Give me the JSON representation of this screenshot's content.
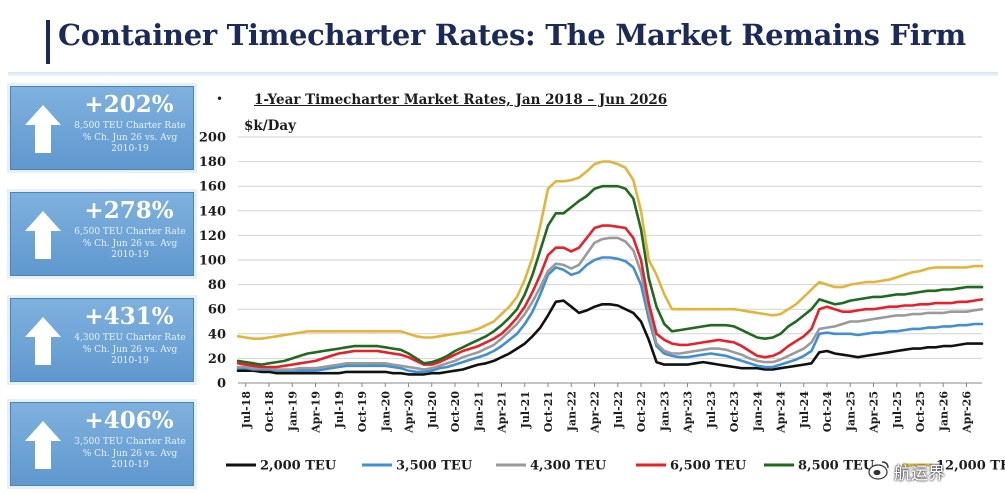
{
  "page": {
    "title": "Container Timecharter Rates: The Market Remains Firm"
  },
  "stats": [
    {
      "pct": "+202%",
      "desc": "8,500 TEU Charter Rate % Ch. Jun 26 vs. Avg 2010-19"
    },
    {
      "pct": "+278%",
      "desc": "6,500 TEU Charter Rate % Ch. Jun 26 vs. Avg 2010-19"
    },
    {
      "pct": "+431%",
      "desc": "4,300 TEU Charter Rate % Ch. Jun 26 vs. Avg 2010-19"
    },
    {
      "pct": "+406%",
      "desc": "3,500 TEU Charter Rate % Ch. Jun 26 vs. Avg 2010-19"
    }
  ],
  "colors": {
    "title": "#1c2a5a",
    "panel": "#6fa6d8",
    "grid": "#d2d2d2"
  },
  "watermark": {
    "text": "航运界",
    "icon": "weibo-logo-icon"
  },
  "chart_data": {
    "type": "line",
    "title": "1-Year Timecharter Market Rates, Jan 2018 – Jun 2026",
    "ylabel": "$k/Day",
    "xlabel": "",
    "ylim": [
      0,
      200
    ],
    "yticks": [
      0,
      20,
      40,
      60,
      80,
      100,
      120,
      140,
      160,
      180,
      200
    ],
    "grid": true,
    "legend_position": "bottom",
    "x_tick_labels": [
      "Jul-18",
      "Oct-18",
      "Jan-19",
      "Apr-19",
      "Jul-19",
      "Oct-19",
      "Jan-20",
      "Apr-20",
      "Jul-20",
      "Oct-20",
      "Jan-21",
      "Apr-21",
      "Jul-21",
      "Oct-21",
      "Jan-22",
      "Apr-22",
      "Jul-22",
      "Oct-22",
      "Jan-23",
      "Apr-23",
      "Jul-23",
      "Oct-23",
      "Jan-24",
      "Apr-24",
      "Jul-24",
      "Oct-24",
      "Jan-25",
      "Apr-25",
      "Jul-25",
      "Oct-25",
      "Jan-26",
      "Apr-26"
    ],
    "x_dates": [
      "2018-06",
      "2018-07",
      "2018-08",
      "2018-09",
      "2018-10",
      "2018-11",
      "2018-12",
      "2019-01",
      "2019-02",
      "2019-03",
      "2019-04",
      "2019-05",
      "2019-06",
      "2019-07",
      "2019-08",
      "2019-09",
      "2019-10",
      "2019-11",
      "2019-12",
      "2020-01",
      "2020-02",
      "2020-03",
      "2020-04",
      "2020-05",
      "2020-06",
      "2020-07",
      "2020-08",
      "2020-09",
      "2020-10",
      "2020-11",
      "2020-12",
      "2021-01",
      "2021-02",
      "2021-03",
      "2021-04",
      "2021-05",
      "2021-06",
      "2021-07",
      "2021-08",
      "2021-09",
      "2021-10",
      "2021-11",
      "2021-12",
      "2022-01",
      "2022-02",
      "2022-03",
      "2022-04",
      "2022-05",
      "2022-06",
      "2022-07",
      "2022-08",
      "2022-09",
      "2022-10",
      "2022-11",
      "2022-12",
      "2023-01",
      "2023-02",
      "2023-03",
      "2023-04",
      "2023-05",
      "2023-06",
      "2023-07",
      "2023-08",
      "2023-09",
      "2023-10",
      "2023-11",
      "2023-12",
      "2024-01",
      "2024-02",
      "2024-03",
      "2024-04",
      "2024-05",
      "2024-06",
      "2024-07",
      "2024-08",
      "2024-09",
      "2024-10",
      "2024-11",
      "2024-12",
      "2025-01",
      "2025-02",
      "2025-03",
      "2025-04",
      "2025-05",
      "2025-06",
      "2025-07",
      "2025-08",
      "2025-09",
      "2025-10",
      "2025-11",
      "2025-12",
      "2026-01",
      "2026-02",
      "2026-03",
      "2026-04",
      "2026-05",
      "2026-06"
    ],
    "series": [
      {
        "name": "2,000 TEU",
        "color": "#111111",
        "values": [
          10,
          10,
          10,
          9,
          9,
          8,
          8,
          8,
          8,
          8,
          8,
          8,
          8,
          8,
          9,
          9,
          9,
          9,
          9,
          9,
          8,
          8,
          7,
          7,
          7,
          8,
          8,
          9,
          10,
          11,
          13,
          15,
          16,
          18,
          21,
          24,
          28,
          32,
          38,
          45,
          55,
          66,
          67,
          62,
          57,
          59,
          62,
          64,
          64,
          63,
          60,
          57,
          50,
          35,
          17,
          15,
          15,
          15,
          15,
          16,
          17,
          16,
          15,
          14,
          13,
          12,
          12,
          12,
          11,
          11,
          12,
          13,
          14,
          15,
          16,
          25,
          26,
          24,
          23,
          22,
          21,
          22,
          23,
          24,
          25,
          26,
          27,
          28,
          28,
          29,
          29,
          30,
          30,
          31,
          32,
          32,
          32
        ]
      },
      {
        "name": "3,500 TEU",
        "color": "#3e8fd4",
        "values": [
          12,
          12,
          11,
          11,
          11,
          10,
          10,
          10,
          10,
          10,
          10,
          11,
          12,
          13,
          14,
          14,
          14,
          14,
          14,
          14,
          13,
          12,
          10,
          9,
          9,
          10,
          12,
          13,
          15,
          17,
          19,
          21,
          23,
          26,
          30,
          35,
          40,
          48,
          58,
          72,
          88,
          94,
          92,
          88,
          90,
          96,
          100,
          102,
          102,
          101,
          99,
          94,
          80,
          52,
          30,
          24,
          22,
          21,
          21,
          22,
          23,
          24,
          23,
          22,
          20,
          18,
          16,
          14,
          13,
          13,
          15,
          17,
          19,
          22,
          26,
          40,
          41,
          40,
          40,
          40,
          39,
          40,
          41,
          41,
          42,
          42,
          43,
          44,
          44,
          45,
          45,
          46,
          46,
          47,
          47,
          48,
          48
        ]
      },
      {
        "name": "4,300 TEU",
        "color": "#9a9a9a",
        "values": [
          13,
          13,
          12,
          12,
          12,
          11,
          11,
          11,
          12,
          12,
          12,
          13,
          14,
          15,
          16,
          16,
          16,
          16,
          16,
          16,
          15,
          14,
          13,
          12,
          11,
          12,
          14,
          16,
          18,
          21,
          23,
          25,
          28,
          31,
          36,
          42,
          48,
          56,
          66,
          78,
          91,
          97,
          96,
          93,
          96,
          105,
          114,
          117,
          118,
          118,
          115,
          108,
          90,
          58,
          32,
          26,
          24,
          24,
          25,
          26,
          27,
          28,
          28,
          27,
          25,
          23,
          20,
          18,
          17,
          17,
          19,
          22,
          25,
          28,
          33,
          44,
          45,
          46,
          48,
          50,
          50,
          51,
          52,
          53,
          54,
          55,
          55,
          56,
          56,
          57,
          57,
          57,
          58,
          58,
          58,
          59,
          60
        ]
      },
      {
        "name": "6,500 TEU",
        "color": "#e8202a",
        "values": [
          16,
          15,
          14,
          13,
          13,
          13,
          14,
          15,
          16,
          17,
          18,
          20,
          22,
          24,
          25,
          26,
          26,
          26,
          26,
          25,
          24,
          23,
          21,
          18,
          15,
          15,
          17,
          20,
          23,
          26,
          28,
          30,
          33,
          36,
          40,
          46,
          53,
          62,
          74,
          88,
          104,
          110,
          110,
          107,
          110,
          118,
          126,
          128,
          128,
          127,
          126,
          118,
          100,
          65,
          40,
          35,
          32,
          31,
          31,
          32,
          33,
          34,
          35,
          34,
          33,
          30,
          26,
          22,
          21,
          22,
          25,
          30,
          34,
          38,
          44,
          60,
          62,
          60,
          58,
          58,
          59,
          60,
          60,
          61,
          62,
          62,
          63,
          63,
          64,
          64,
          65,
          65,
          65,
          66,
          66,
          67,
          68
        ]
      },
      {
        "name": "8,500 TEU",
        "color": "#1e6b1e",
        "values": [
          18,
          17,
          16,
          15,
          16,
          17,
          18,
          20,
          22,
          24,
          25,
          26,
          27,
          28,
          29,
          30,
          30,
          30,
          30,
          29,
          28,
          27,
          24,
          20,
          16,
          17,
          19,
          22,
          26,
          29,
          32,
          35,
          38,
          42,
          47,
          53,
          60,
          72,
          88,
          108,
          128,
          138,
          138,
          143,
          148,
          152,
          158,
          160,
          160,
          160,
          158,
          150,
          125,
          85,
          62,
          48,
          42,
          43,
          44,
          45,
          46,
          47,
          47,
          47,
          46,
          43,
          40,
          37,
          36,
          37,
          40,
          46,
          50,
          55,
          60,
          68,
          66,
          64,
          65,
          67,
          68,
          69,
          70,
          70,
          71,
          72,
          72,
          73,
          74,
          75,
          75,
          76,
          76,
          77,
          78,
          78,
          78
        ]
      },
      {
        "name": "12,000 TEU",
        "color": "#e2b53a",
        "values": [
          38,
          37,
          36,
          36,
          37,
          38,
          39,
          40,
          41,
          42,
          42,
          42,
          42,
          42,
          42,
          42,
          42,
          42,
          42,
          42,
          42,
          42,
          40,
          38,
          37,
          37,
          38,
          39,
          40,
          41,
          42,
          44,
          47,
          50,
          56,
          62,
          70,
          84,
          102,
          128,
          158,
          164,
          164,
          165,
          167,
          172,
          178,
          180,
          180,
          178,
          175,
          165,
          140,
          100,
          88,
          72,
          60,
          60,
          60,
          60,
          60,
          60,
          60,
          60,
          60,
          59,
          58,
          57,
          56,
          55,
          56,
          60,
          64,
          70,
          76,
          82,
          80,
          78,
          78,
          80,
          81,
          82,
          82,
          83,
          84,
          86,
          88,
          90,
          91,
          93,
          94,
          94,
          94,
          94,
          94,
          95,
          95
        ]
      }
    ],
    "legend_entries": [
      "2,000 TEU",
      "3,500 TEU",
      "4,300 TEU",
      "6,500 TEU",
      "8,500 TEU",
      "12,000 TEU"
    ]
  }
}
